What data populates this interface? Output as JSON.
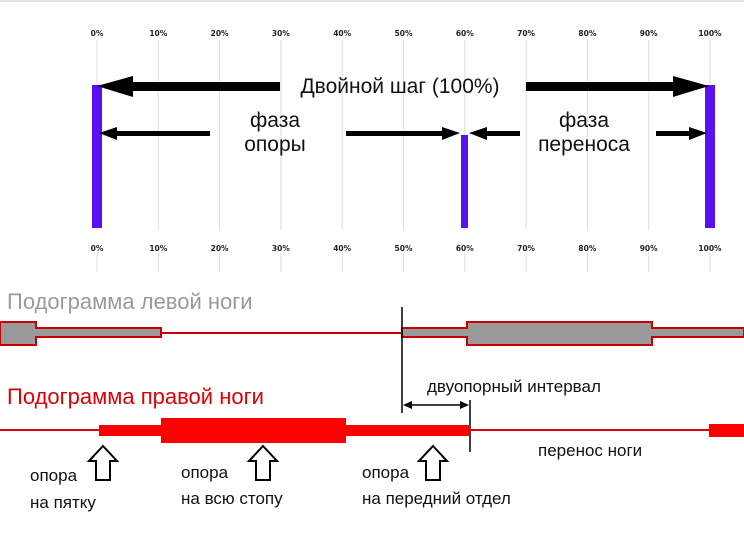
{
  "ticks": [
    "0%",
    "10%",
    "20%",
    "30%",
    "40%",
    "50%",
    "60%",
    "70%",
    "80%",
    "90%",
    "100%"
  ],
  "cycle": {
    "double_step_label": "Двойной шаг (100%)",
    "stance_phase": {
      "line1": "фаза",
      "line2": "опоры",
      "start_pct": 0,
      "end_pct": 60
    },
    "swing_phase": {
      "line1": "фаза",
      "line2": "переноса",
      "start_pct": 60,
      "end_pct": 100
    }
  },
  "left_foot": {
    "title": "Подограмма левой ноги"
  },
  "right_foot": {
    "title": "Подограмма правой ноги"
  },
  "annotations": {
    "double_support": "двуопорный интервал",
    "swing_leg": "перенос ноги",
    "heel_line1": "опора",
    "heel_line2": "на пятку",
    "foot_line1": "опора",
    "foot_line2": "на всю стопу",
    "fore_line1": "опора",
    "fore_line2": "на передний отдел"
  },
  "colors": {
    "marker": "#5a10f0",
    "left_fill": "#9a9a9a",
    "left_stroke": "#cc0000",
    "right_fill": "#ff0000",
    "arrow": "#000000",
    "grid": "#dddddd"
  }
}
